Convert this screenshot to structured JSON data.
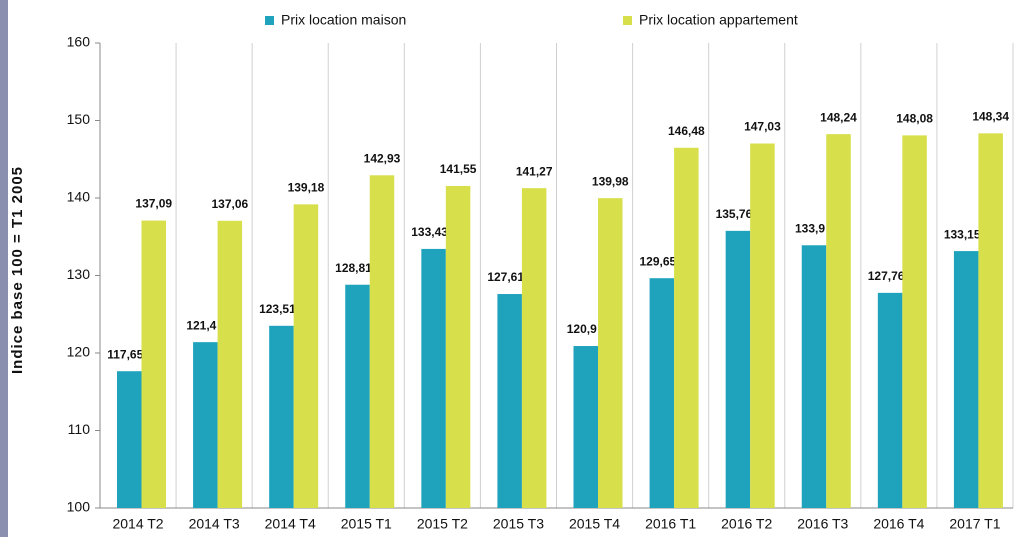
{
  "chart_data": {
    "type": "bar",
    "y_label": "Indice base 100 = T1 2005",
    "categories": [
      "2014 T2",
      "2014 T3",
      "2014 T4",
      "2015 T1",
      "2015 T2",
      "2015 T3",
      "2015 T4",
      "2016 T1",
      "2016 T2",
      "2016 T3",
      "2016 T4",
      "2017 T1"
    ],
    "series": [
      {
        "name": "Prix location maison",
        "color": "#1fa3bd",
        "values": [
          117.65,
          121.4,
          123.51,
          128.81,
          133.43,
          127.61,
          120.9,
          129.65,
          135.76,
          133.9,
          127.76,
          133.15
        ],
        "value_labels": [
          "117,65",
          "121,4",
          "123,51",
          "128,81",
          "133,43",
          "127,61",
          "120,9",
          "129,65",
          "135,76",
          "133,9",
          "127,76",
          "133,15"
        ]
      },
      {
        "name": "Prix location appartement",
        "color": "#d7df4a",
        "values": [
          137.09,
          137.06,
          139.18,
          142.93,
          141.55,
          141.27,
          139.98,
          146.48,
          147.03,
          148.24,
          148.08,
          148.34
        ],
        "value_labels": [
          "137,09",
          "137,06",
          "139,18",
          "142,93",
          "141,55",
          "141,27",
          "139,98",
          "146,48",
          "147,03",
          "148,24",
          "148,08",
          "148,34"
        ]
      }
    ],
    "ylim": [
      100,
      160
    ],
    "yticks": [
      100,
      110,
      120,
      130,
      140,
      150,
      160
    ],
    "legend": "top"
  }
}
